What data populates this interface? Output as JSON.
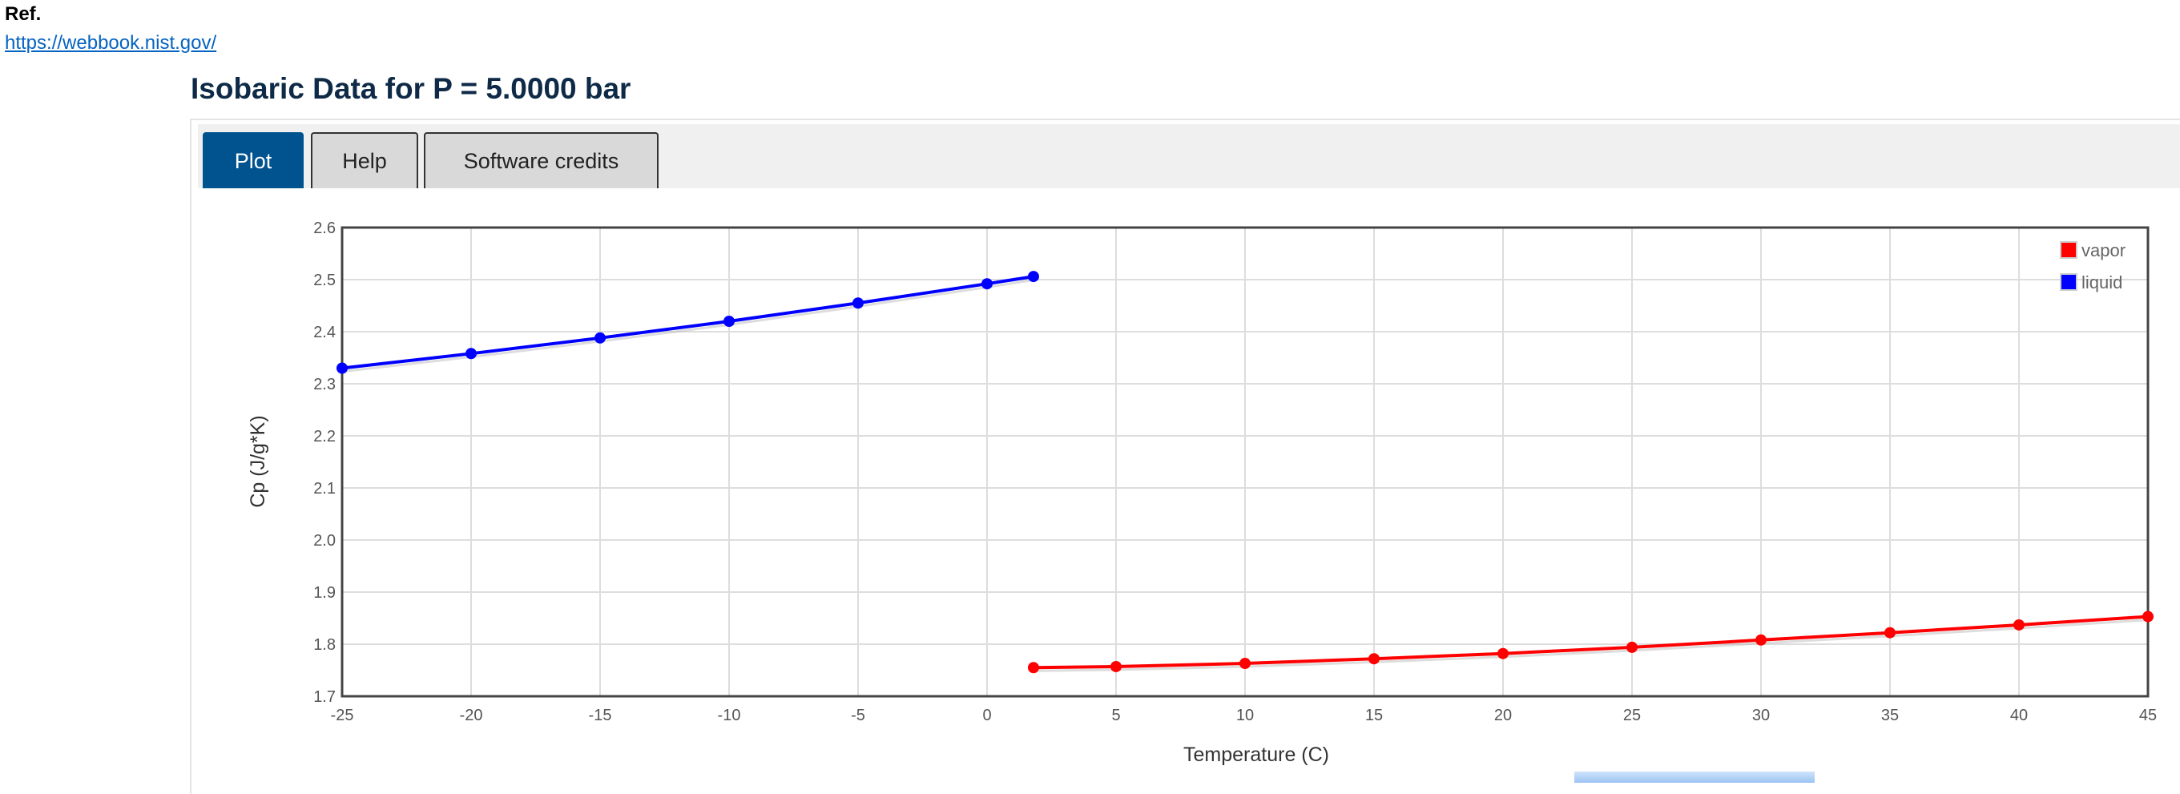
{
  "ref": {
    "label": "Ref.",
    "link": "https://webbook.nist.gov/"
  },
  "title": "Isobaric Data for P = 5.0000 bar",
  "tabs": [
    {
      "label": "Plot",
      "active": true
    },
    {
      "label": "Help",
      "active": false
    },
    {
      "label": "Software credits",
      "active": false
    }
  ],
  "chart_data": {
    "type": "line",
    "title": "",
    "xlabel": "Temperature (C)",
    "ylabel": "Cp (J/g*K)",
    "xlim": [
      -25,
      45
    ],
    "ylim": [
      1.7,
      2.6
    ],
    "xticks": [
      "-25",
      "-20",
      "-15",
      "-10",
      "-5",
      "0",
      "5",
      "10",
      "15",
      "20",
      "25",
      "30",
      "35",
      "40",
      "45"
    ],
    "yticks": [
      "1.7",
      "1.8",
      "1.9",
      "2.0",
      "2.1",
      "2.2",
      "2.3",
      "2.4",
      "2.5",
      "2.6"
    ],
    "grid": true,
    "legend_position": "top-right",
    "series": [
      {
        "name": "vapor",
        "color": "#ff0000",
        "x": [
          1.8,
          5,
          10,
          15,
          20,
          25,
          30,
          35,
          40,
          45
        ],
        "y": [
          1.755,
          1.757,
          1.763,
          1.772,
          1.782,
          1.794,
          1.808,
          1.822,
          1.837,
          1.853
        ]
      },
      {
        "name": "liquid",
        "color": "#0000ff",
        "x": [
          -25,
          -20,
          -15,
          -10,
          -5,
          0,
          1.8
        ],
        "y": [
          2.33,
          2.358,
          2.388,
          2.42,
          2.455,
          2.492,
          2.506
        ]
      }
    ]
  }
}
